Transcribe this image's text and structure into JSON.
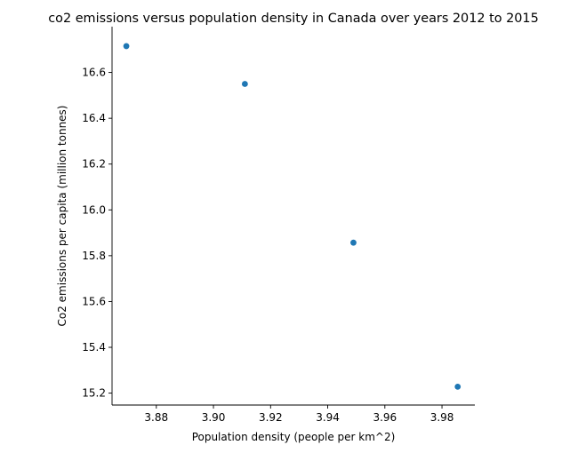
{
  "chart_data": {
    "type": "scatter",
    "title": "co2 emissions versus population density in Canada over years 2012 to 2015",
    "xlabel": "Population density (people per km^2)",
    "ylabel": "Co2 emissions per capita (million tonnes)",
    "xlim": [
      3.8645,
      3.9915
    ],
    "ylim": [
      15.148,
      16.8
    ],
    "xticks": [
      3.88,
      3.9,
      3.92,
      3.94,
      3.96,
      3.98
    ],
    "xtick_labels": [
      "3.88",
      "3.90",
      "3.92",
      "3.94",
      "3.96",
      "3.98"
    ],
    "yticks": [
      15.2,
      15.4,
      15.6,
      15.8,
      16.0,
      16.2,
      16.4,
      16.6
    ],
    "ytick_labels": [
      "15.2",
      "15.4",
      "15.6",
      "15.8",
      "16.0",
      "16.2",
      "16.4",
      "16.6"
    ],
    "grid": false,
    "legend": "none",
    "point_color": "#1f77b4",
    "points": [
      {
        "x": 3.8695,
        "y": 16.715
      },
      {
        "x": 3.911,
        "y": 16.55
      },
      {
        "x": 3.949,
        "y": 15.857
      },
      {
        "x": 3.9855,
        "y": 15.228
      }
    ]
  }
}
